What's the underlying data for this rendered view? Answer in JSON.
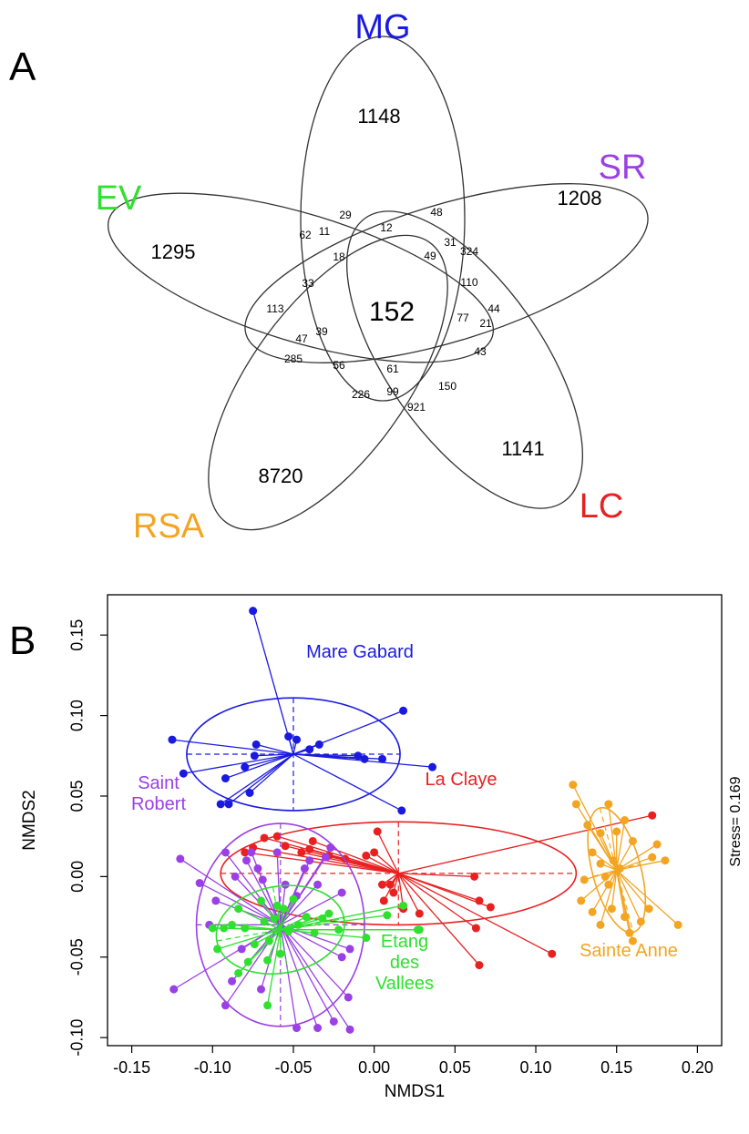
{
  "panel_a": {
    "letter": "A",
    "sets": [
      {
        "key": "MG",
        "label": "MG",
        "color": "#1a1adf"
      },
      {
        "key": "SR",
        "label": "SR",
        "color": "#9b3fe6"
      },
      {
        "key": "LC",
        "label": "LC",
        "color": "#e82020"
      },
      {
        "key": "RSA",
        "label": "RSA",
        "color": "#f3a521"
      },
      {
        "key": "EV",
        "label": "EV",
        "color": "#2fe02f"
      }
    ],
    "regions": {
      "MG_only": "1148",
      "SR_only": "1208",
      "EV_only": "1295",
      "LC_only": "1141",
      "RSA_only": "8720",
      "all": "152",
      "r29": "29",
      "r12": "12",
      "r48": "48",
      "r62": "62",
      "r11": "11",
      "r18": "18",
      "r31": "31",
      "r324": "324",
      "r49": "49",
      "r110": "110",
      "r33": "33",
      "r113": "113",
      "r44": "44",
      "r77": "77",
      "r21": "21",
      "r39": "39",
      "r47": "47",
      "r43": "43",
      "r285": "285",
      "r56": "56",
      "r61": "61",
      "r150": "150",
      "r226": "226",
      "r99": "99",
      "r921": "921"
    }
  },
  "chart_data": {
    "type": "scatter",
    "panel_letter": "B",
    "xlabel": "NMDS1",
    "ylabel": "NMDS2",
    "xlim": [
      -0.165,
      0.215
    ],
    "ylim": [
      -0.105,
      0.175
    ],
    "xticks": [
      -0.15,
      -0.1,
      -0.05,
      0.0,
      0.05,
      0.1,
      0.15,
      0.2
    ],
    "xtick_labels": [
      "-0.15",
      "-0.10",
      "-0.05",
      "0.00",
      "0.05",
      "0.10",
      "0.15",
      "0.20"
    ],
    "yticks": [
      -0.1,
      -0.05,
      0.0,
      0.05,
      0.1,
      0.15
    ],
    "ytick_labels": [
      "-0.10",
      "-0.05",
      "0.00",
      "0.05",
      "0.10",
      "0.15"
    ],
    "stress_text": "Stress= 0.169",
    "series": [
      {
        "name": "Mare Gabard",
        "label_lines": [
          "Mare Gabard"
        ],
        "color": "#1a1adf",
        "centroid": [
          -0.05,
          0.076
        ],
        "ellipse": {
          "rx": 0.066,
          "ry": 0.035,
          "angle": 0
        },
        "points": [
          [
            -0.075,
            0.165
          ],
          [
            -0.125,
            0.085
          ],
          [
            -0.118,
            0.064
          ],
          [
            -0.095,
            0.045
          ],
          [
            -0.09,
            0.045
          ],
          [
            -0.077,
            0.052
          ],
          [
            -0.092,
            0.061
          ],
          [
            -0.08,
            0.068
          ],
          [
            -0.074,
            0.075
          ],
          [
            -0.073,
            0.082
          ],
          [
            -0.053,
            0.087
          ],
          [
            -0.048,
            0.085
          ],
          [
            -0.04,
            0.079
          ],
          [
            -0.034,
            0.082
          ],
          [
            -0.01,
            0.075
          ],
          [
            -0.006,
            0.073
          ],
          [
            0.005,
            0.073
          ],
          [
            0.017,
            0.041
          ],
          [
            0.018,
            0.103
          ],
          [
            0.036,
            0.068
          ]
        ]
      },
      {
        "name": "La Claye",
        "label_lines": [
          "La Claye"
        ],
        "color": "#e82020",
        "centroid": [
          0.015,
          0.002
        ],
        "ellipse": {
          "rx": 0.11,
          "ry": 0.032,
          "angle": 0
        },
        "points": [
          [
            -0.08,
            0.015
          ],
          [
            -0.075,
            0.018
          ],
          [
            -0.068,
            0.024
          ],
          [
            -0.06,
            0.025
          ],
          [
            -0.055,
            0.019
          ],
          [
            -0.045,
            0.015
          ],
          [
            -0.04,
            0.017
          ],
          [
            -0.038,
            0.022
          ],
          [
            -0.028,
            0.013
          ],
          [
            -0.018,
            0.011
          ],
          [
            -0.005,
            0.013
          ],
          [
            0.0,
            0.015
          ],
          [
            0.002,
            0.028
          ],
          [
            0.005,
            -0.005
          ],
          [
            0.006,
            -0.015
          ],
          [
            0.012,
            -0.01
          ],
          [
            0.018,
            -0.02
          ],
          [
            0.01,
            -0.005
          ],
          [
            0.028,
            -0.023
          ],
          [
            0.062,
            0.0
          ],
          [
            0.065,
            -0.015
          ],
          [
            0.063,
            -0.032
          ],
          [
            0.072,
            -0.019
          ],
          [
            0.065,
            -0.055
          ],
          [
            0.11,
            -0.048
          ],
          [
            0.172,
            0.038
          ]
        ]
      },
      {
        "name": "Saint Robert",
        "label_lines": [
          "Saint",
          "Robert"
        ],
        "color": "#9b3fe6",
        "centroid": [
          -0.058,
          -0.03
        ],
        "ellipse": {
          "rx": 0.052,
          "ry": 0.063,
          "angle": 0
        },
        "points": [
          [
            -0.124,
            -0.07
          ],
          [
            -0.12,
            0.011
          ],
          [
            -0.108,
            -0.004
          ],
          [
            -0.102,
            -0.03
          ],
          [
            -0.098,
            -0.015
          ],
          [
            -0.092,
            0.015
          ],
          [
            -0.086,
            0.0
          ],
          [
            -0.082,
            -0.045
          ],
          [
            -0.079,
            0.01
          ],
          [
            -0.076,
            0.015
          ],
          [
            -0.072,
            0.005
          ],
          [
            -0.069,
            -0.002
          ],
          [
            -0.06,
            0.015
          ],
          [
            -0.055,
            -0.005
          ],
          [
            -0.048,
            -0.012
          ],
          [
            -0.043,
            0.005
          ],
          [
            -0.04,
            0.01
          ],
          [
            -0.035,
            -0.005
          ],
          [
            -0.03,
            0.012
          ],
          [
            -0.027,
            0.018
          ],
          [
            -0.02,
            -0.01
          ],
          [
            -0.02,
            -0.05
          ],
          [
            -0.015,
            -0.045
          ],
          [
            -0.016,
            -0.075
          ],
          [
            -0.015,
            -0.095
          ],
          [
            -0.025,
            -0.09
          ],
          [
            -0.035,
            -0.094
          ],
          [
            -0.048,
            -0.094
          ],
          [
            -0.07,
            -0.07
          ],
          [
            -0.088,
            -0.065
          ],
          [
            -0.092,
            -0.08
          ]
        ]
      },
      {
        "name": "Etang des Vallees",
        "label_lines": [
          "Etang",
          "des",
          "Vallees"
        ],
        "color": "#2fe02f",
        "centroid": [
          -0.058,
          -0.033
        ],
        "ellipse": {
          "rx": 0.04,
          "ry": 0.027,
          "angle": 10
        },
        "points": [
          [
            -0.1,
            -0.032
          ],
          [
            -0.097,
            -0.045
          ],
          [
            -0.093,
            -0.032
          ],
          [
            -0.088,
            -0.03
          ],
          [
            -0.084,
            -0.02
          ],
          [
            -0.08,
            -0.032
          ],
          [
            -0.078,
            -0.053
          ],
          [
            -0.074,
            -0.042
          ],
          [
            -0.07,
            -0.015
          ],
          [
            -0.068,
            -0.028
          ],
          [
            -0.066,
            -0.052
          ],
          [
            -0.065,
            -0.04
          ],
          [
            -0.062,
            -0.026
          ],
          [
            -0.06,
            -0.018
          ],
          [
            -0.058,
            -0.048
          ],
          [
            -0.056,
            -0.02
          ],
          [
            -0.053,
            -0.034
          ],
          [
            -0.05,
            -0.014
          ],
          [
            -0.047,
            -0.03
          ],
          [
            -0.042,
            -0.025
          ],
          [
            -0.037,
            -0.035
          ],
          [
            -0.032,
            -0.026
          ],
          [
            -0.028,
            -0.023
          ],
          [
            -0.022,
            -0.033
          ],
          [
            -0.005,
            -0.038
          ],
          [
            0.008,
            -0.024
          ],
          [
            0.018,
            -0.018
          ],
          [
            0.027,
            -0.033
          ],
          [
            0.028,
            -0.033
          ],
          [
            -0.066,
            -0.08
          ],
          [
            -0.084,
            -0.06
          ]
        ]
      },
      {
        "name": "Sainte Anne",
        "label_lines": [
          "Sainte Anne"
        ],
        "color": "#f3a521",
        "centroid": [
          0.15,
          0.004
        ],
        "ellipse": {
          "rx": 0.015,
          "ry": 0.04,
          "angle": 15
        },
        "points": [
          [
            0.123,
            0.057
          ],
          [
            0.125,
            0.045
          ],
          [
            0.132,
            0.032
          ],
          [
            0.14,
            0.027
          ],
          [
            0.135,
            0.015
          ],
          [
            0.14,
            0.008
          ],
          [
            0.148,
            0.01
          ],
          [
            0.152,
            0.005
          ],
          [
            0.145,
            -0.005
          ],
          [
            0.13,
            -0.002
          ],
          [
            0.128,
            -0.015
          ],
          [
            0.135,
            -0.022
          ],
          [
            0.14,
            -0.03
          ],
          [
            0.147,
            -0.02
          ],
          [
            0.155,
            -0.025
          ],
          [
            0.158,
            -0.035
          ],
          [
            0.16,
            -0.04
          ],
          [
            0.165,
            -0.028
          ],
          [
            0.17,
            -0.02
          ],
          [
            0.172,
            0.012
          ],
          [
            0.175,
            0.02
          ],
          [
            0.18,
            0.01
          ],
          [
            0.188,
            -0.03
          ],
          [
            0.155,
            0.035
          ],
          [
            0.15,
            0.028
          ],
          [
            0.145,
            0.045
          ],
          [
            0.16,
            0.022
          ],
          [
            0.143,
            0.0
          ]
        ]
      }
    ]
  }
}
